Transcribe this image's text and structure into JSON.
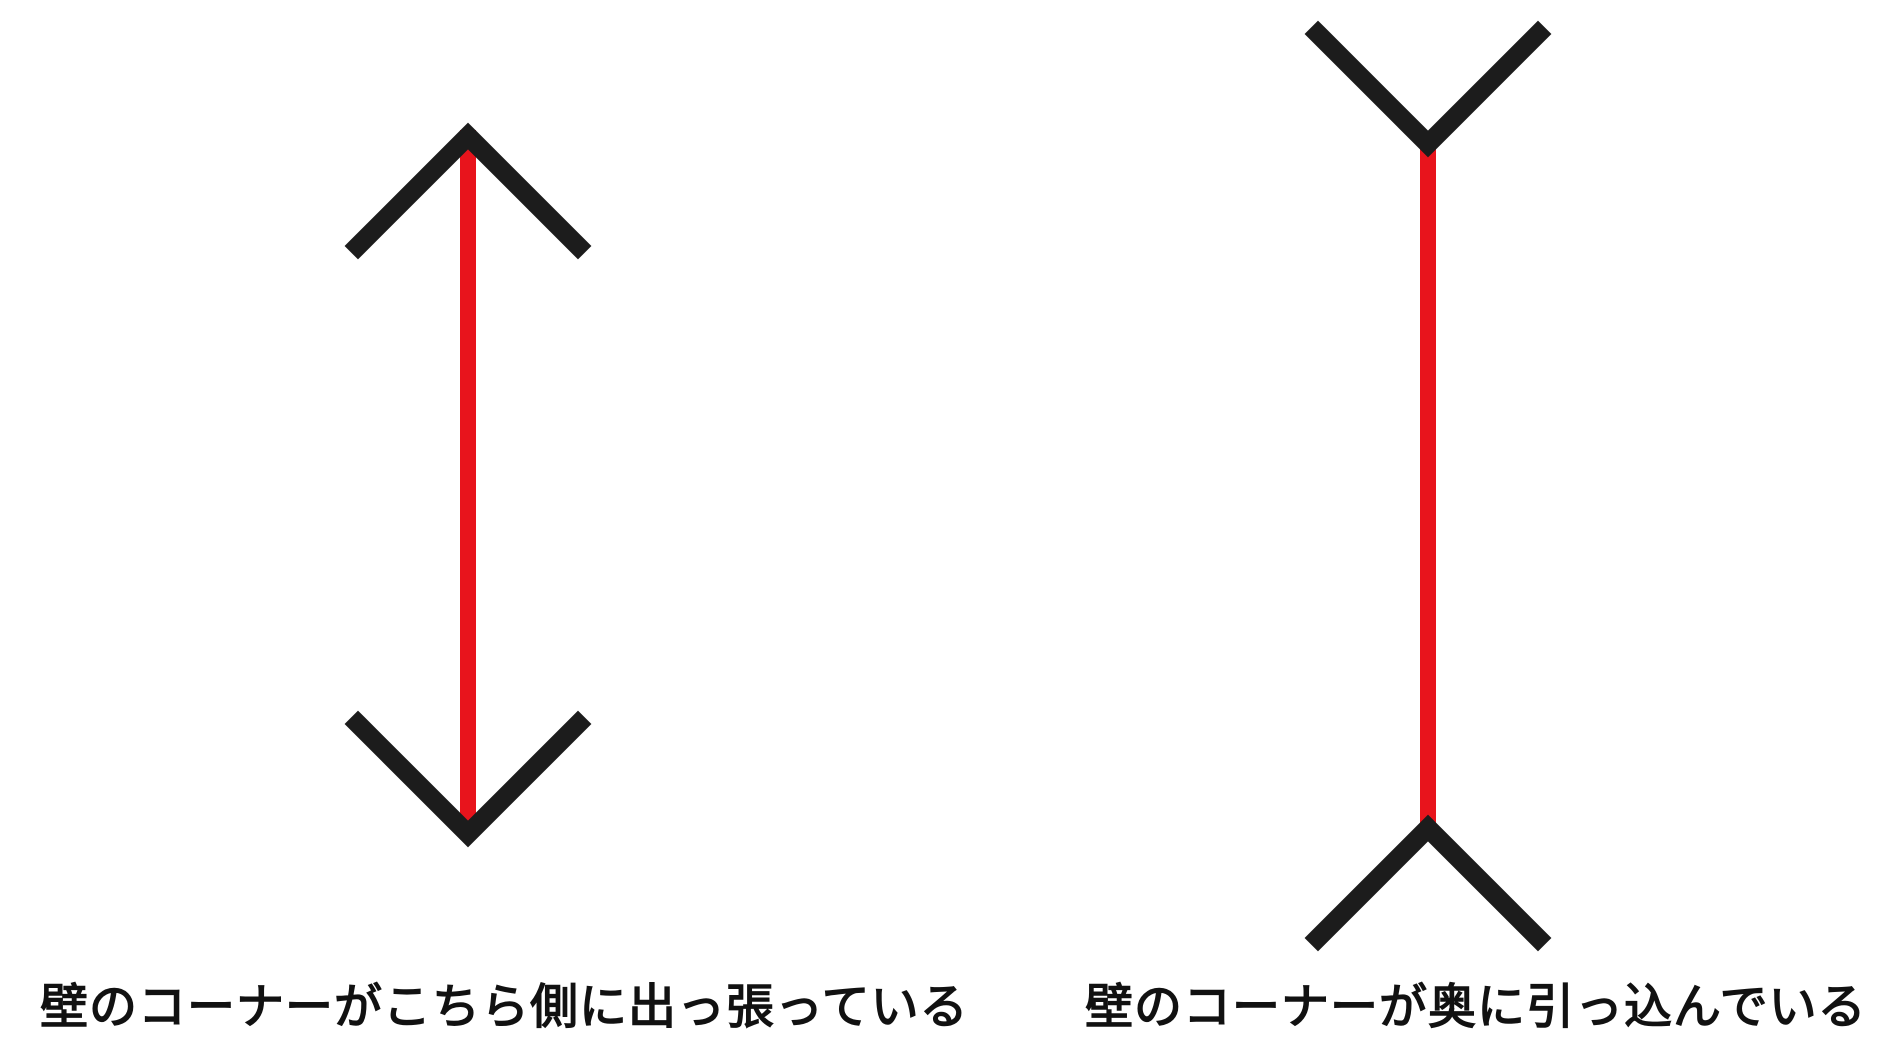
{
  "captions": {
    "left": "壁のコーナーがこちら側に出っ張っている",
    "right": "壁のコーナーが奥に引っ込んでいる"
  },
  "colors": {
    "shaft": "#e8141c",
    "fins": "#1c1c1c",
    "text": "#111111",
    "background": "#ffffff"
  }
}
